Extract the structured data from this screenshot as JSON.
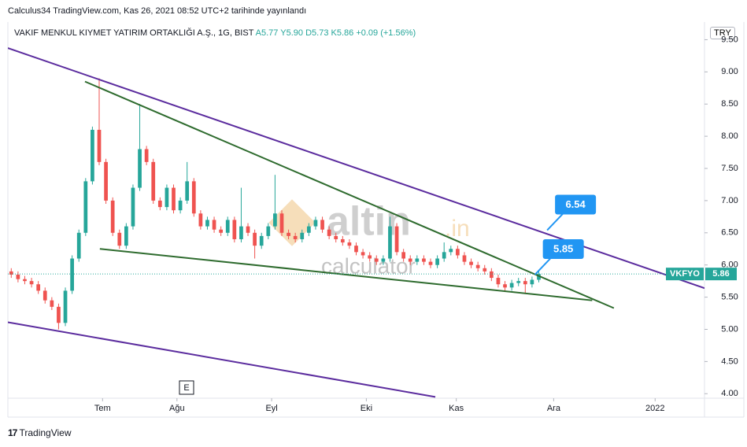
{
  "header": {
    "published": "Calculus34 TradingView.com, Kas 26, 2021 08:52 UTC+2 tarihinde yayınlandı",
    "symbol": "VAKIF MENKUL KIYMET YATIRIM ORTAKLIĞI A.Ş., 1G, BIST",
    "ohlc": [
      "A5.77",
      "Y5.90",
      "D5.73",
      "K5.86",
      "+0.09 (+1.56%)"
    ],
    "currency": "TRY"
  },
  "footer": "TradingView",
  "watermark": [
    "altin",
    ".in",
    "calculator"
  ],
  "event_marker": "E",
  "chart_data": {
    "type": "candlestick",
    "up_color": "#26a69a",
    "down_color": "#ef5350",
    "open": [
      5.9,
      5.85,
      5.78,
      5.75,
      5.7,
      5.6,
      5.45,
      5.35,
      5.1,
      5.6,
      6.1,
      6.5,
      7.3,
      8.1,
      7.6,
      7.0,
      6.5,
      6.3,
      6.6,
      7.2,
      7.8,
      7.6,
      7.0,
      6.9,
      7.2,
      6.85,
      7.0,
      7.3,
      6.8,
      6.6,
      6.7,
      6.55,
      6.5,
      6.7,
      6.4,
      6.6,
      6.5,
      6.3,
      6.45,
      6.6,
      6.8,
      6.5,
      6.45,
      6.4,
      6.5,
      6.6,
      6.7,
      6.55,
      6.45,
      6.4,
      6.35,
      6.3,
      6.2,
      6.15,
      6.1,
      6.05,
      6.1,
      6.6,
      6.2,
      6.1,
      6.05,
      6.1,
      6.05,
      6.0,
      6.1,
      6.2,
      6.25,
      6.15,
      6.05,
      6.0,
      5.95,
      5.9,
      5.8,
      5.7,
      5.65,
      5.72,
      5.75,
      5.7,
      5.77
    ],
    "high": [
      5.95,
      5.9,
      5.83,
      5.8,
      5.75,
      5.65,
      5.5,
      5.4,
      5.65,
      6.15,
      6.55,
      7.35,
      8.15,
      8.9,
      7.65,
      7.05,
      6.55,
      6.65,
      7.25,
      8.5,
      7.85,
      7.65,
      7.05,
      7.25,
      7.25,
      7.05,
      7.6,
      7.35,
      6.85,
      6.75,
      6.75,
      6.6,
      6.75,
      6.75,
      7.2,
      6.65,
      6.55,
      6.5,
      6.65,
      7.4,
      6.85,
      6.55,
      6.5,
      6.55,
      6.65,
      6.75,
      6.75,
      6.6,
      6.5,
      6.45,
      6.4,
      6.35,
      6.25,
      6.2,
      6.15,
      6.15,
      6.75,
      6.65,
      6.25,
      6.15,
      6.15,
      6.15,
      6.1,
      6.15,
      6.35,
      6.3,
      6.3,
      6.2,
      6.1,
      6.05,
      6.0,
      5.95,
      5.85,
      5.75,
      5.77,
      5.8,
      5.8,
      5.82,
      5.9
    ],
    "low": [
      5.8,
      5.73,
      5.7,
      5.65,
      5.55,
      5.4,
      5.3,
      5.0,
      5.05,
      5.55,
      6.05,
      6.45,
      7.25,
      7.55,
      6.95,
      6.45,
      6.25,
      6.25,
      6.55,
      7.15,
      7.55,
      6.95,
      6.85,
      6.85,
      6.8,
      6.8,
      6.95,
      6.75,
      6.55,
      6.55,
      6.5,
      6.45,
      6.45,
      6.35,
      6.35,
      6.45,
      6.1,
      6.25,
      6.4,
      6.55,
      6.45,
      6.4,
      6.35,
      6.35,
      6.45,
      6.55,
      6.5,
      6.4,
      6.35,
      6.3,
      6.25,
      6.15,
      6.1,
      6.05,
      6.0,
      6.0,
      6.05,
      6.15,
      6.05,
      6.0,
      6.0,
      6.0,
      5.95,
      5.95,
      6.05,
      6.15,
      6.1,
      6.0,
      5.95,
      5.9,
      5.85,
      5.75,
      5.65,
      5.58,
      5.6,
      5.67,
      5.55,
      5.65,
      5.73
    ],
    "close": [
      5.85,
      5.78,
      5.75,
      5.7,
      5.6,
      5.45,
      5.35,
      5.1,
      5.6,
      6.1,
      6.5,
      7.3,
      8.1,
      7.6,
      7.0,
      6.5,
      6.3,
      6.6,
      7.2,
      7.8,
      7.6,
      7.0,
      6.9,
      7.2,
      6.85,
      7.0,
      7.3,
      6.8,
      6.6,
      6.7,
      6.55,
      6.5,
      6.7,
      6.4,
      6.6,
      6.5,
      6.3,
      6.45,
      6.6,
      6.8,
      6.5,
      6.45,
      6.4,
      6.5,
      6.6,
      6.7,
      6.55,
      6.45,
      6.4,
      6.35,
      6.3,
      6.2,
      6.15,
      6.1,
      6.05,
      6.1,
      6.6,
      6.2,
      6.1,
      6.05,
      6.1,
      6.05,
      6.0,
      6.1,
      6.2,
      6.25,
      6.15,
      6.05,
      6.0,
      5.95,
      5.9,
      5.8,
      5.7,
      5.65,
      5.72,
      5.75,
      5.7,
      5.77,
      5.86
    ],
    "xlim": [
      -0.5,
      102.5
    ],
    "xticks": [
      {
        "value": 13.5,
        "label": "Tem"
      },
      {
        "value": 24.5,
        "label": "Ağu"
      },
      {
        "value": 38.5,
        "label": "Eyl"
      },
      {
        "value": 52.5,
        "label": "Eki"
      },
      {
        "value": 65.8,
        "label": "Kas"
      },
      {
        "value": 80.2,
        "label": "Ara"
      },
      {
        "value": 95.2,
        "label": "2022"
      }
    ],
    "ylim": [
      3.93,
      9.75
    ],
    "yticks": [
      {
        "value": 4,
        "label": "4.00"
      },
      {
        "value": 4.5,
        "label": "4.50"
      },
      {
        "value": 5,
        "label": "5.00"
      },
      {
        "value": 5.5,
        "label": "5.50"
      },
      {
        "value": 6,
        "label": "6.00"
      },
      {
        "value": 6.5,
        "label": "6.50"
      },
      {
        "value": 7,
        "label": "7.00"
      },
      {
        "value": 7.5,
        "label": "7.50"
      },
      {
        "value": 8,
        "label": "8.00"
      },
      {
        "value": 8.5,
        "label": "8.50"
      },
      {
        "value": 9,
        "label": "9.00"
      },
      {
        "value": 9.5,
        "label": "9.50"
      }
    ],
    "trendlines": [
      {
        "color": "#5b2c9e",
        "x": [
          -0.5,
          102.5
        ],
        "y": [
          9.37,
          5.64
        ]
      },
      {
        "color": "#5b2c9e",
        "x": [
          -0.5,
          62.7
        ],
        "y": [
          5.11,
          3.95
        ]
      },
      {
        "color": "#2e6b2e",
        "x": [
          10.9,
          89.1
        ],
        "y": [
          8.85,
          5.33
        ]
      },
      {
        "color": "#2e6b2e",
        "x": [
          13.1,
          85.9
        ],
        "y": [
          6.25,
          5.45
        ]
      }
    ],
    "callouts": [
      {
        "x": 80.4,
        "value": 6.54
      },
      {
        "x": 78.6,
        "value": 5.85
      }
    ],
    "last_price": {
      "symbol": "VKFYO",
      "value": 5.86
    }
  }
}
